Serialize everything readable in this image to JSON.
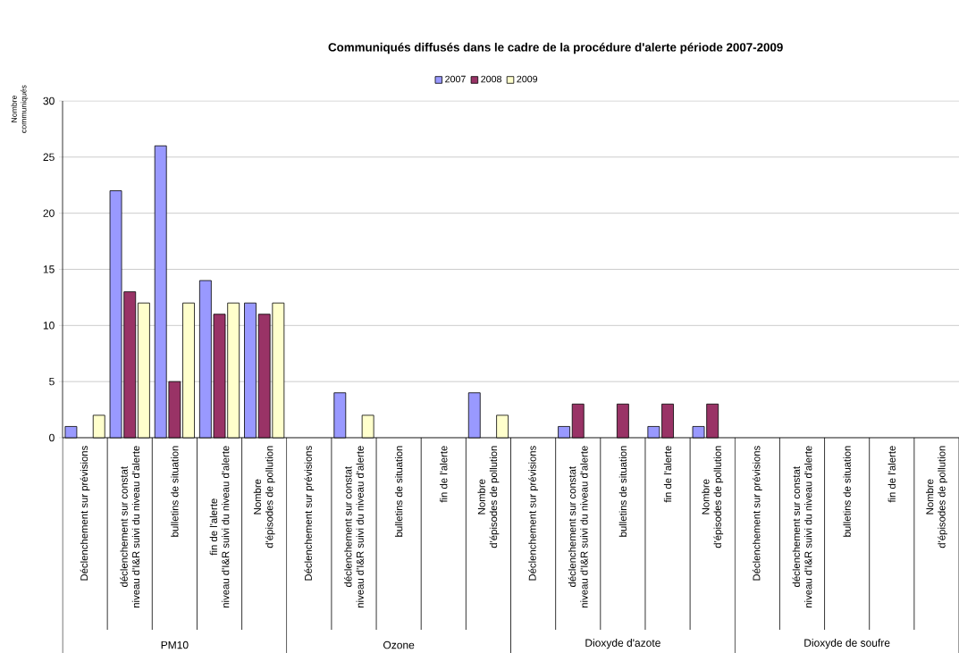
{
  "chart_data": {
    "type": "bar",
    "title": "Communiqués diffusés dans le cadre de la procédure d'alerte période 2007-2009",
    "ylabel": "Nombre\ncommuniqués",
    "categories": [
      "Déclenchement sur prévisions",
      "déclenchement sur constat\nniveau d'I&R suivi du niveau d'alerte",
      "bulletins de situation",
      "fin de l'alerte\nniveau d'I&R suivi du niveau d'alerte",
      "Nombre\nd'épisodes de pollution",
      "Déclenchement sur prévisions",
      "déclenchement sur constat\nniveau d'I&R suivi du niveau d'alerte",
      "bulletins de situation",
      "fin de l'alerte",
      "Nombre\nd'épisodes de pollution",
      "Déclenchement sur prévisions",
      "déclenchement sur constat\nniveau d'I&R suivi du niveau d'alerte",
      "bulletins de situation",
      "fin de l'alerte",
      "Nombre\nd'épisodes de pollution",
      "Déclenchement sur prévisions",
      "déclenchement sur constat\nniveau d'I&R suivi du niveau d'alerte",
      "bulletins de situation",
      "fin de l'alerte",
      "Nombre\nd'épisodes de pollution"
    ],
    "series": [
      {
        "name": "2007",
        "color": "#9999ff",
        "values": [
          1,
          22,
          26,
          14,
          12,
          null,
          4,
          null,
          null,
          4,
          null,
          1,
          null,
          1,
          1,
          null,
          null,
          null,
          null,
          null
        ]
      },
      {
        "name": "2008",
        "color": "#993366",
        "values": [
          null,
          13,
          5,
          11,
          11,
          null,
          null,
          null,
          null,
          null,
          null,
          3,
          3,
          3,
          3,
          null,
          null,
          null,
          null,
          null
        ]
      },
      {
        "name": "2009",
        "color": "#ffffcc",
        "values": [
          2,
          12,
          12,
          12,
          12,
          null,
          2,
          null,
          null,
          2,
          null,
          null,
          null,
          null,
          null,
          null,
          null,
          null,
          null,
          null
        ]
      }
    ],
    "annotations": [
      "PM10",
      "Ozone",
      "Dioxyde d'azote",
      "Dioxyde de soufre"
    ],
    "ylim": [
      0,
      30
    ],
    "yticks": [
      0,
      5,
      10,
      15,
      20,
      25,
      30
    ],
    "grid": "y",
    "legend": "top"
  }
}
